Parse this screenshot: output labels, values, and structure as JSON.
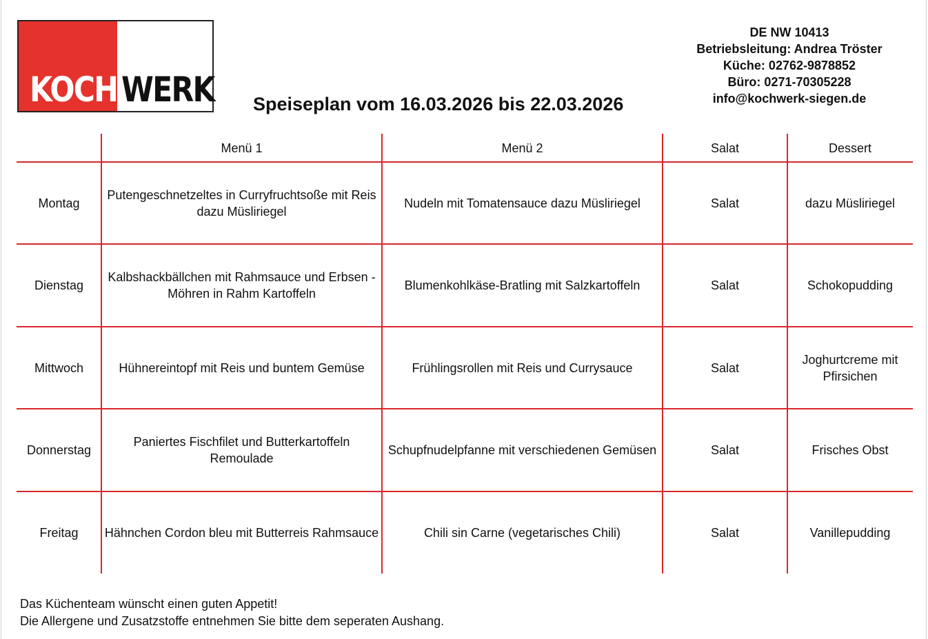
{
  "logo": {
    "part1": "KOCH",
    "part2": "WERK",
    "colors": {
      "red": "#e5322d",
      "dark": "#111111"
    }
  },
  "title": "Speiseplan vom 16.03.2026 bis 22.03.2026",
  "contact": [
    "DE NW 10413",
    "Betriebsleitung: Andrea Tröster",
    "Küche: 02762-9878852",
    "Büro: 0271-70305228",
    "info@kochwerk-siegen.de"
  ],
  "table": {
    "headers": [
      "",
      "Menü 1",
      "Menü 2",
      "Salat",
      "Dessert"
    ],
    "rows": [
      [
        "Montag",
        "Putengeschnetzeltes in Curryfruchtsoße mit Reis dazu Müsliriegel",
        "Nudeln mit Tomatensauce dazu Müsliriegel",
        "Salat",
        "dazu Müsliriegel"
      ],
      [
        "Dienstag",
        "Kalbshackbällchen mit Rahmsauce und Erbsen - Möhren in Rahm Kartoffeln",
        "Blumenkohlkäse-Bratling mit Salzkartoffeln",
        "Salat",
        "Schokopudding"
      ],
      [
        "Mittwoch",
        "Hühnereintopf mit Reis und buntem Gemüse",
        "Frühlingsrollen mit Reis und Currysauce",
        "Salat",
        "Joghurtcreme mit Pfirsichen"
      ],
      [
        "Donnerstag",
        "Paniertes Fischfilet und Butterkartoffeln Remoulade",
        "Schupfnudelpfanne mit verschiedenen Gemüsen",
        "Salat",
        "Frisches Obst"
      ],
      [
        "Freitag",
        "Hähnchen Cordon bleu mit Butterreis Rahmsauce",
        "Chili sin Carne (vegetarisches Chili)",
        "Salat",
        "Vanillepudding"
      ]
    ],
    "line_color": "#d8262c"
  },
  "footer": [
    "Das Küchenteam wünscht einen guten Appetit!",
    "Die Allergene und Zusatzstoffe entnehmen Sie bitte dem seperaten Aushang."
  ]
}
